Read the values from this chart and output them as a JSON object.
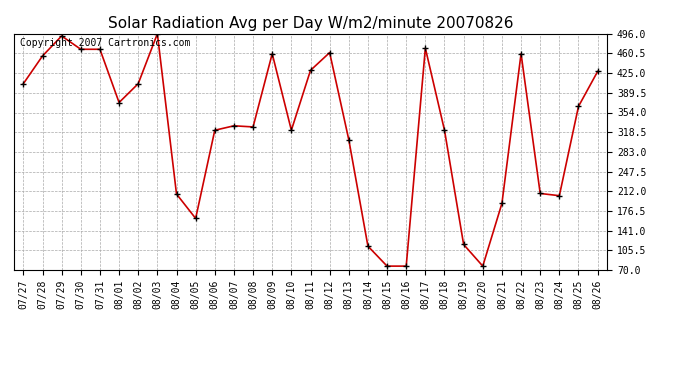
{
  "title": "Solar Radiation Avg per Day W/m2/minute 20070826",
  "copyright_text": "Copyright 2007 Cartronics.com",
  "dates": [
    "07/27",
    "07/28",
    "07/29",
    "07/30",
    "07/31",
    "08/01",
    "08/02",
    "08/03",
    "08/04",
    "08/05",
    "08/06",
    "08/07",
    "08/08",
    "08/09",
    "08/10",
    "08/11",
    "08/12",
    "08/13",
    "08/14",
    "08/15",
    "08/16",
    "08/17",
    "08/18",
    "08/19",
    "08/20",
    "08/21",
    "08/22",
    "08/23",
    "08/24",
    "08/25",
    "08/26"
  ],
  "values": [
    406,
    456,
    492,
    468,
    468,
    372,
    406,
    496,
    207,
    163,
    322,
    330,
    328,
    460,
    322,
    430,
    462,
    305,
    113,
    77,
    77,
    470,
    322,
    116,
    77,
    190,
    460,
    208,
    204,
    365,
    428
  ],
  "line_color": "#cc0000",
  "marker_color": "#000000",
  "bg_color": "#ffffff",
  "plot_bg_color": "#ffffff",
  "grid_color": "#aaaaaa",
  "yticks": [
    70.0,
    105.5,
    141.0,
    176.5,
    212.0,
    247.5,
    283.0,
    318.5,
    354.0,
    389.5,
    425.0,
    460.5,
    496.0
  ],
  "ylim": [
    70.0,
    496.0
  ],
  "title_fontsize": 11,
  "copyright_fontsize": 7,
  "tick_fontsize": 7
}
